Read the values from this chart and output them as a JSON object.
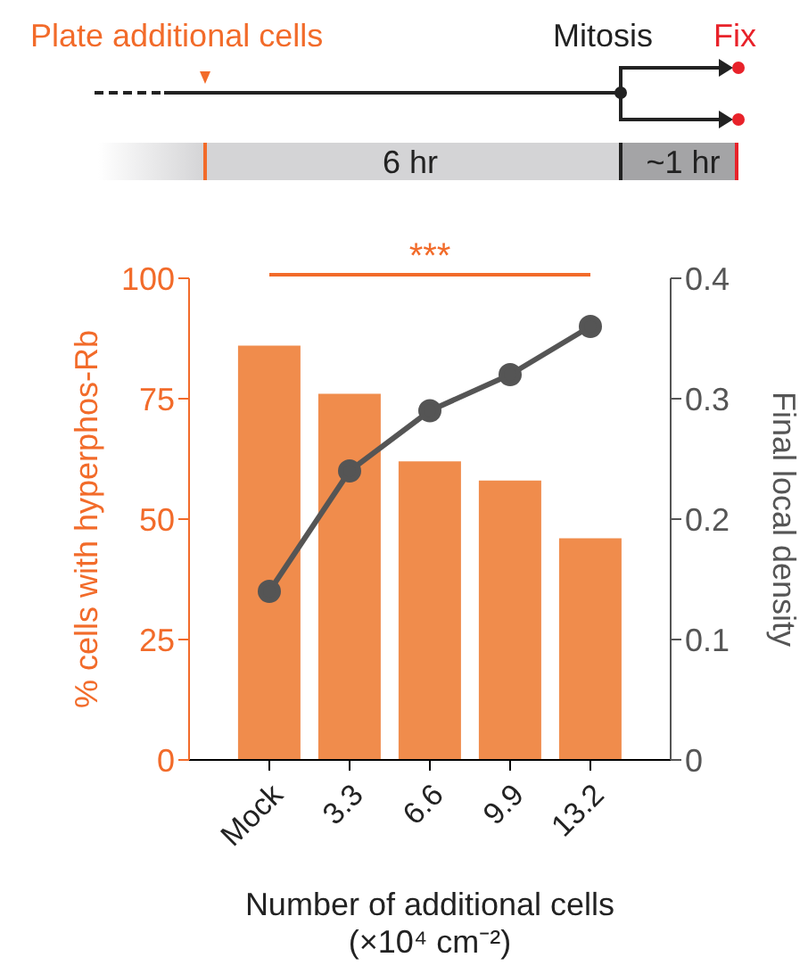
{
  "chart_data": {
    "type": "bar",
    "xlabel": "Number of additional cells\n(×10⁴ cm⁻²)",
    "ylabel": "% cells with hyperphos-Rb",
    "y2label": "Final local density",
    "categories": [
      "Mock",
      "3.3",
      "6.6",
      "9.9",
      "13.2"
    ],
    "series": [
      {
        "color": "#f08c4c",
        "values": [
          86,
          76,
          62,
          58,
          46
        ]
      },
      {
        "type": "line",
        "axis": "y2",
        "color": "#555555",
        "values": [
          0.14,
          0.24,
          0.29,
          0.32,
          0.36
        ]
      }
    ],
    "ylim": [
      0,
      100
    ],
    "yticks": [
      0,
      25,
      50,
      75,
      100
    ],
    "y2lim": [
      0,
      0.4
    ],
    "y2ticks": [
      0,
      0.1,
      0.2,
      0.3,
      0.4
    ],
    "marker": "circle",
    "annotations": [
      "Plate additional cells",
      "Mitosis",
      "Fix",
      "6 hr",
      "~1 hr",
      "***"
    ]
  }
}
